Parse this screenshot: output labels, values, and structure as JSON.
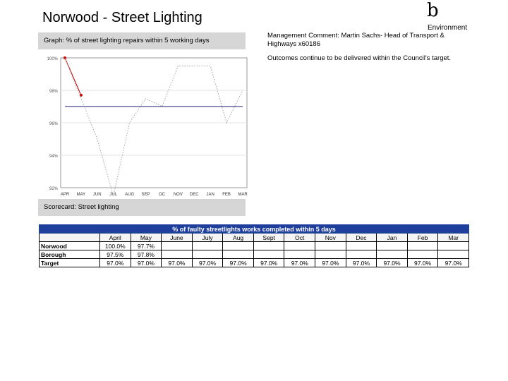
{
  "page": {
    "title": "Norwood - Street Lighting",
    "logo_glyph": "b",
    "department": "Environment"
  },
  "graph_panel": {
    "header": "Graph: % of street lighting repairs within 5 working days"
  },
  "comment_panel": {
    "comment": "Management Comment: Martin Sachs- Head of Transport & Highways x60186",
    "outcome": "Outcomes continue to be delivered within the Council's target."
  },
  "chart_data": {
    "type": "line",
    "categories": [
      "APR",
      "MAY",
      "JUN",
      "JUL",
      "AUG",
      "SEP",
      "OC",
      "NOV",
      "DEC",
      "JAN",
      "FEB",
      "MAR"
    ],
    "y_tick_labels": [
      "100%",
      "98%",
      "96%",
      "94%",
      "92%"
    ],
    "ylim": [
      92,
      100
    ],
    "grid": true,
    "series": [
      {
        "name": "",
        "color": "#cc0000",
        "style": "solid-markers",
        "values": [
          100.0,
          97.7,
          null,
          null,
          null,
          null,
          null,
          null,
          null,
          null,
          null,
          null
        ]
      },
      {
        "name": "",
        "color": "#a0a0a0",
        "style": "dotted",
        "values": [
          100.0,
          97.5,
          95.0,
          91.5,
          96.0,
          97.5,
          97.0,
          99.5,
          99.5,
          99.5,
          96.0,
          98.0
        ]
      },
      {
        "name": "",
        "color": "#1a1a6e",
        "style": "solid",
        "values": [
          97.0,
          97.0,
          97.0,
          97.0,
          97.0,
          97.0,
          97.0,
          97.0,
          97.0,
          97.0,
          97.0,
          97.0
        ]
      }
    ]
  },
  "scorecard_panel": {
    "header": "Scorecard: Street lighting"
  },
  "scorecard": {
    "title": "% of faulty streetlights works completed within 5 days",
    "months": [
      "April",
      "May",
      "June",
      "July",
      "Aug",
      "Sept",
      "Oct",
      "Nov",
      "Dec",
      "Jan",
      "Feb",
      "Mar"
    ],
    "rows": [
      {
        "label": "Norwood",
        "values": [
          "100.0%",
          "97.7%",
          "",
          "",
          "",
          "",
          "",
          "",
          "",
          "",
          "",
          ""
        ]
      },
      {
        "label": "Borough",
        "values": [
          "97.5%",
          "97.8%",
          "",
          "",
          "",
          "",
          "",
          "",
          "",
          "",
          "",
          ""
        ]
      },
      {
        "label": "Target",
        "values": [
          "97.0%",
          "97.0%",
          "97.0%",
          "97.0%",
          "97.0%",
          "97.0%",
          "97.0%",
          "97.0%",
          "97.0%",
          "97.0%",
          "97.0%",
          "97.0%"
        ]
      }
    ]
  }
}
